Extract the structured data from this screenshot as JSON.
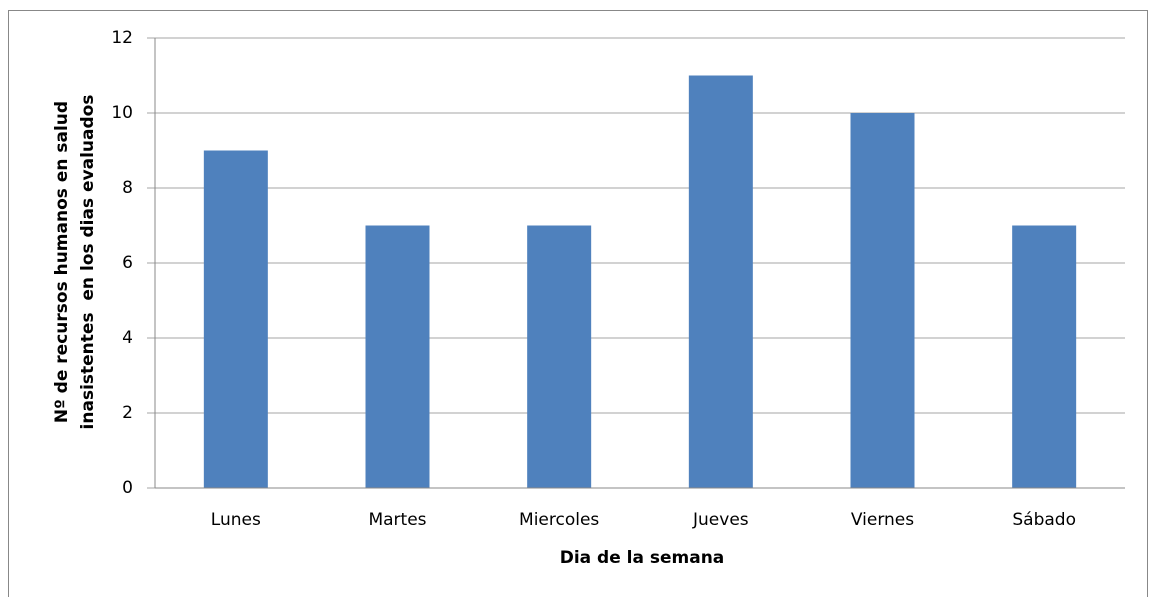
{
  "chart_data": {
    "type": "bar",
    "categories": [
      "Lunes",
      "Martes",
      "Miercoles",
      "Jueves",
      "Viernes",
      "Sábado"
    ],
    "values": [
      9,
      7,
      7,
      11,
      10,
      7
    ],
    "color": "#4f81bd",
    "xlabel": "Dia de la semana",
    "ylabel": [
      "Nº de recursos humanos en salud",
      "inasistentes  en los dias evaluados"
    ],
    "ylim": [
      0,
      12
    ],
    "yticks": [
      0,
      2,
      4,
      6,
      8,
      10,
      12
    ],
    "grid": true
  }
}
